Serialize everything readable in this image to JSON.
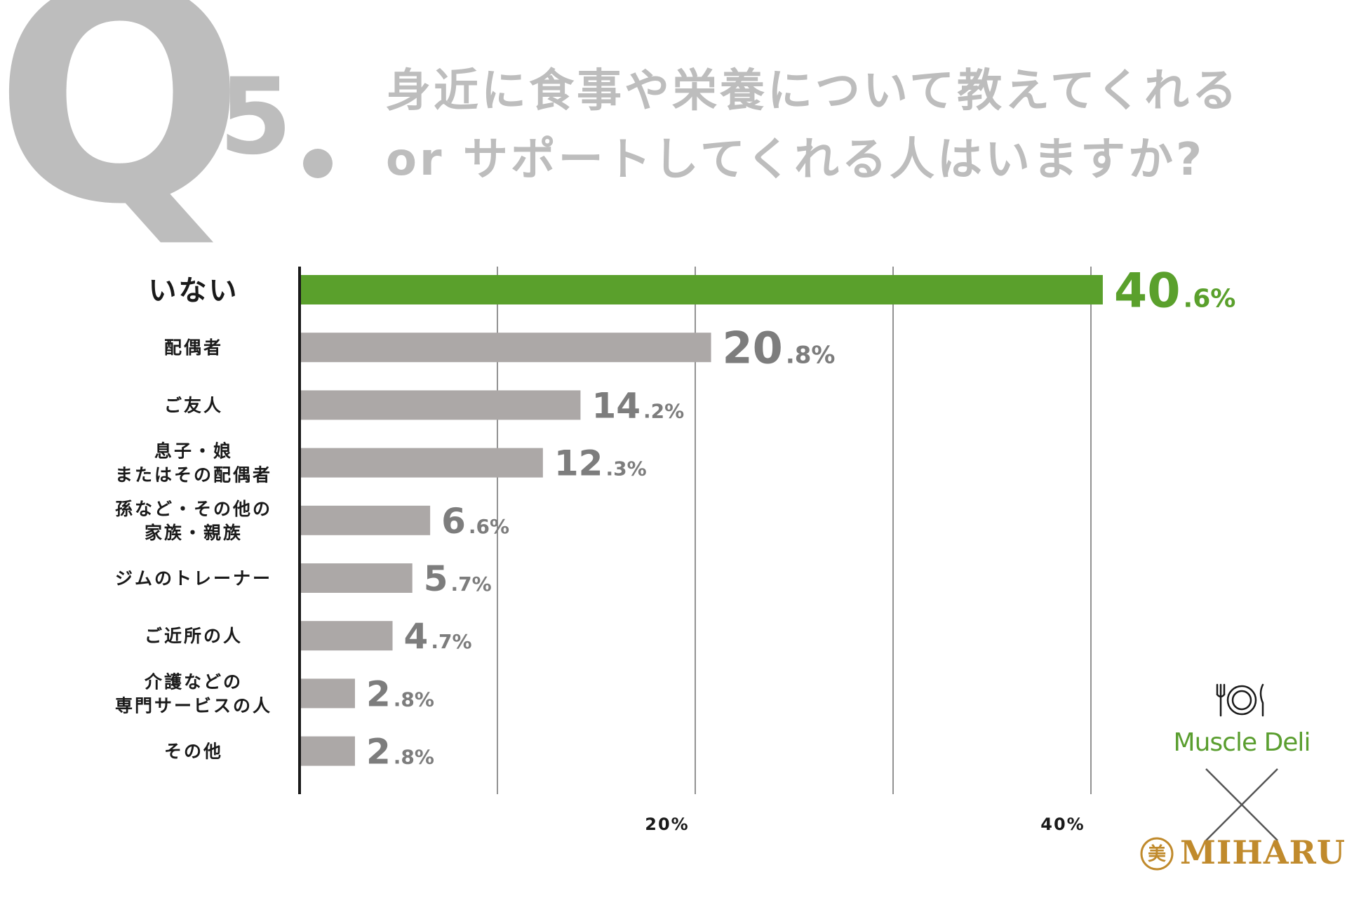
{
  "header": {
    "q_letter": "Q",
    "q_number": "5",
    "title_line_1": "身近に食事や栄養について教えてくれる",
    "title_line_2": "or サポートしてくれる人はいますか?"
  },
  "colors": {
    "highlight": "#5aa02c",
    "bar": "#aca8a7",
    "value_text": "#7d7d7d",
    "heading_gray": "#bdbdbd",
    "axis": "#1a1a1a",
    "grid": "#6e6e6e",
    "muscle_deli_green": "#5a9e2f",
    "miharu_gold": "#c08a2c"
  },
  "chart_data": {
    "type": "bar",
    "orientation": "horizontal",
    "categories": [
      [
        "いない"
      ],
      [
        "配偶者"
      ],
      [
        "ご友人"
      ],
      [
        "息子・娘",
        "またはその配偶者"
      ],
      [
        "孫など・その他の",
        "家族・親族"
      ],
      [
        "ジムのトレーナー"
      ],
      [
        "ご近所の人"
      ],
      [
        "介護などの",
        "専門サービスの人"
      ],
      [
        "その他"
      ]
    ],
    "values": [
      40.6,
      20.8,
      14.2,
      12.3,
      6.6,
      5.7,
      4.7,
      2.8,
      2.8
    ],
    "value_labels": [
      {
        "int": "40",
        "dec": ".6%"
      },
      {
        "int": "20",
        "dec": ".8%"
      },
      {
        "int": "14",
        "dec": ".2%"
      },
      {
        "int": "12",
        "dec": ".3%"
      },
      {
        "int": "6",
        "dec": ".6%"
      },
      {
        "int": "5",
        "dec": ".7%"
      },
      {
        "int": "4",
        "dec": ".7%"
      },
      {
        "int": "2",
        "dec": ".8%"
      },
      {
        "int": "2",
        "dec": ".8%"
      }
    ],
    "highlight_index": 0,
    "xlim": [
      0,
      50
    ],
    "gridlines": [
      10,
      20,
      30,
      40
    ],
    "x_ticks": [
      {
        "value": 20,
        "label": "20%"
      },
      {
        "value": 40,
        "label": "40%"
      }
    ],
    "grid": true
  },
  "branding": {
    "partner_1": "Muscle Deli",
    "partner_2": "MIHARU",
    "seal_char": "美",
    "plate_icon": "plate-with-cutlery-icon",
    "cross_icon": "collaboration-cross-icon"
  }
}
